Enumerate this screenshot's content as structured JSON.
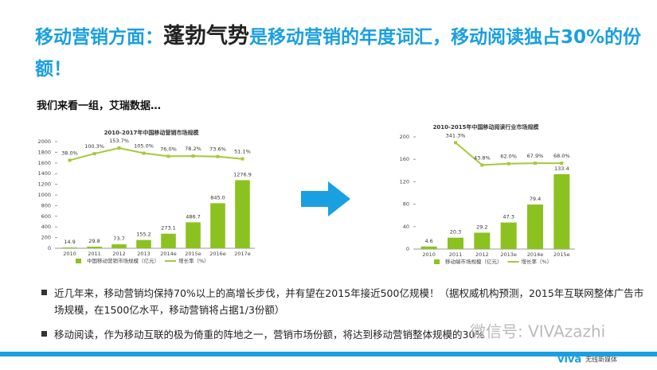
{
  "title_lead": "移动营销方面：",
  "title_key": "蓬勃气势",
  "title_rest": "是移动营销的年度词汇，移动阅读独占30%的份额！",
  "subtitle": "我们来看一组，艾瑞数据…",
  "bullets": [
    "近几年来，移动营销均保持70%以上的高增长步伐，并有望在2015年接近500亿规模！（据权威机构预测，2015年互联网整体广告市场规模，在1500亿水平，移动营销将占据1/3份额）",
    "移动阅读，作为移动互联的极为倚重的阵地之一，营销市场份额，将达到移动营销整体规模的30%"
  ],
  "watermark": "微信号: VIVAzazhi",
  "logo": "viva",
  "logo_tagline": "无线新媒体",
  "chart_data": [
    {
      "type": "bar",
      "title": "2010-2017年中国移动营销市场规模",
      "categories": [
        "2010",
        "2011",
        "2012",
        "2013",
        "2014e",
        "2015e",
        "2016e",
        "2017e"
      ],
      "series": [
        {
          "name": "中国移动营销市场规模（亿元）",
          "color": "#8cc21f",
          "values": [
            14.9,
            29.8,
            73.7,
            155.2,
            273.1,
            486.7,
            845.0,
            1276.9
          ],
          "value_labels": [
            "14.9",
            "29.8",
            "73.7",
            "155.2",
            "273.1",
            "486.7",
            "845.0",
            "1276.9"
          ]
        },
        {
          "name": "增长率（%）",
          "type": "line",
          "axis": "y2",
          "color": "#a6c93b",
          "values": [
            38.0,
            100.3,
            153.7,
            105.0,
            76.0,
            78.2,
            73.6,
            51.1
          ],
          "value_labels": [
            "38.0%",
            "100.3%",
            "153.7%",
            "105.0%",
            "76.0%",
            "78.2%",
            "73.6%",
            "51.1%"
          ]
        }
      ],
      "ylim": [
        0,
        2000
      ],
      "yticks": [
        0,
        200,
        400,
        600,
        800,
        1000,
        1200,
        1400,
        1600,
        1800,
        2000
      ],
      "y2lim": [
        -792,
        214
      ],
      "grid": false
    },
    {
      "type": "bar",
      "title": "2010-2015年中国移动阅读行业市场规模",
      "categories": [
        "2010",
        "2011",
        "2012",
        "2013e",
        "2014e",
        "2015e"
      ],
      "series": [
        {
          "name": "移动端市场规模（亿元）",
          "color": "#8cc21f",
          "values": [
            4.6,
            20.3,
            29.2,
            47.3,
            79.4,
            133.4
          ]
        },
        {
          "name": "增长率（%）",
          "type": "line",
          "axis": "y2",
          "color": "#a6c93b",
          "values": [
            null,
            341.3,
            43.8,
            62.0,
            67.9,
            68.0
          ],
          "value_labels": [
            null,
            "341.3%",
            "43.8%",
            "62.0%",
            "67.9%",
            "68.0%"
          ]
        }
      ],
      "ylim": [
        0,
        200
      ],
      "yticks": [
        0,
        40,
        80,
        120,
        160,
        200
      ],
      "y2lim": [
        -1072,
        418
      ],
      "grid": false
    }
  ]
}
